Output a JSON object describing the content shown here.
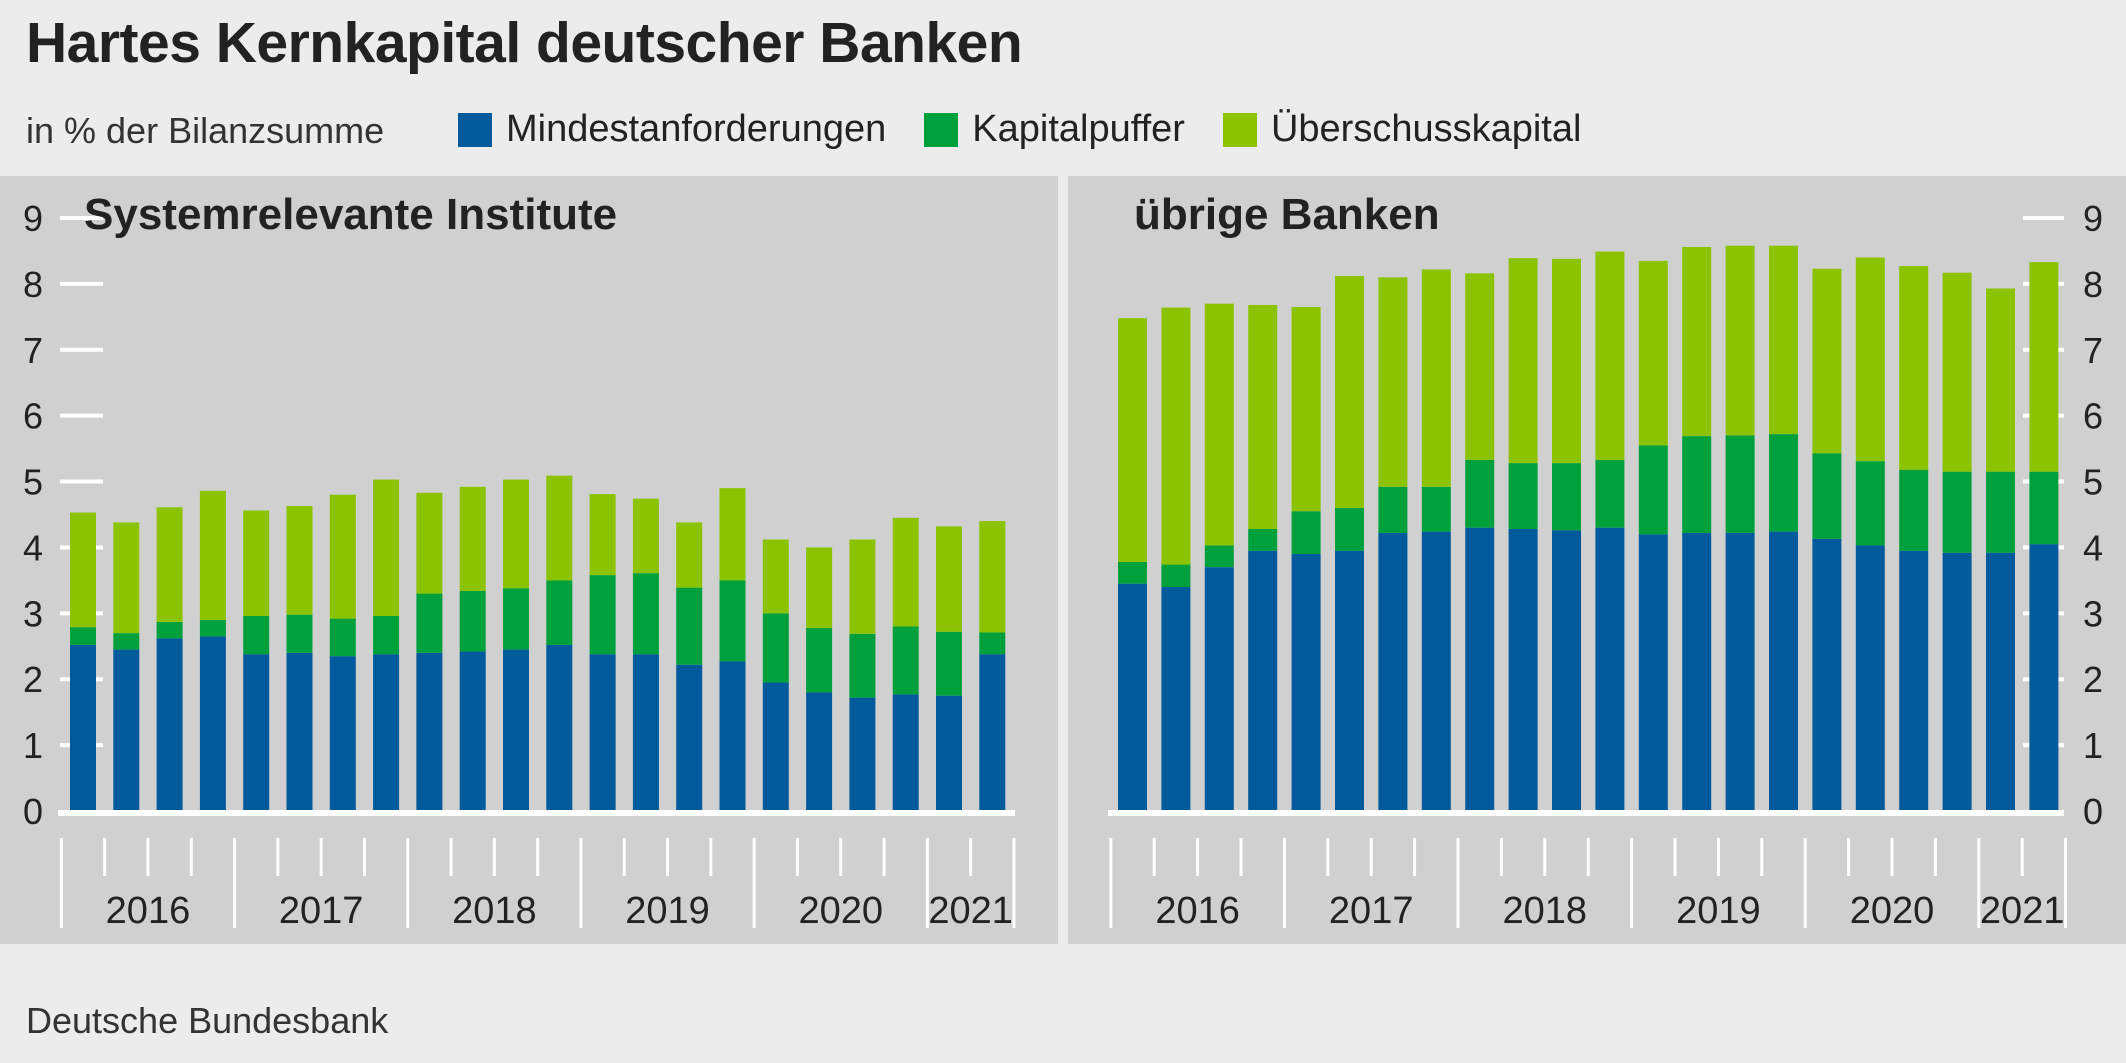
{
  "title": "Hartes Kernkapital deutscher Banken",
  "subtitle": "in % der Bilanzsumme",
  "source": "Deutsche Bundesbank",
  "legend": [
    {
      "label": "Mindestanforderungen",
      "color": "#005a9c"
    },
    {
      "label": "Kapitalpuffer",
      "color": "#00a03c"
    },
    {
      "label": "Überschusskapital",
      "color": "#8cc300"
    }
  ],
  "chart_data": [
    {
      "type": "bar",
      "stacked": true,
      "title": "Systemrelevante Institute",
      "ylim": [
        0,
        9
      ],
      "yticks": [
        0,
        1,
        2,
        3,
        4,
        5,
        6,
        7,
        8,
        9
      ],
      "axis_side": "left",
      "year_labels": [
        "2016",
        "2017",
        "2018",
        "2019",
        "2020",
        "2021"
      ],
      "quarters_per_year": [
        4,
        4,
        4,
        4,
        4,
        2
      ],
      "series": [
        {
          "name": "Mindestanforderungen",
          "values": [
            2.52,
            2.45,
            2.62,
            2.65,
            2.38,
            2.4,
            2.35,
            2.38,
            2.4,
            2.42,
            2.45,
            2.52,
            2.38,
            2.38,
            2.22,
            2.27,
            1.95,
            1.8,
            1.72,
            1.77,
            1.75,
            2.38
          ]
        },
        {
          "name": "Kapitalpuffer",
          "values": [
            0.27,
            0.25,
            0.25,
            0.25,
            0.58,
            0.58,
            0.57,
            0.58,
            0.9,
            0.92,
            0.93,
            0.98,
            1.2,
            1.23,
            1.17,
            1.23,
            1.05,
            0.98,
            0.97,
            1.03,
            0.97,
            0.33
          ]
        },
        {
          "name": "Überschusskapital",
          "values": [
            1.74,
            1.68,
            1.74,
            1.96,
            1.6,
            1.65,
            1.88,
            2.07,
            1.53,
            1.58,
            1.65,
            1.59,
            1.23,
            1.13,
            0.99,
            1.4,
            1.12,
            1.22,
            1.43,
            1.65,
            1.6,
            1.69
          ]
        }
      ]
    },
    {
      "type": "bar",
      "stacked": true,
      "title": "übrige Banken",
      "ylim": [
        0,
        9
      ],
      "yticks": [
        0,
        1,
        2,
        3,
        4,
        5,
        6,
        7,
        8,
        9
      ],
      "axis_side": "right",
      "year_labels": [
        "2016",
        "2017",
        "2018",
        "2019",
        "2020",
        "2021"
      ],
      "quarters_per_year": [
        4,
        4,
        4,
        4,
        4,
        2
      ],
      "series": [
        {
          "name": "Mindestanforderungen",
          "values": [
            3.45,
            3.4,
            3.7,
            3.95,
            3.9,
            3.95,
            4.22,
            4.24,
            4.3,
            4.28,
            4.26,
            4.3,
            4.2,
            4.22,
            4.22,
            4.24,
            4.13,
            4.03,
            3.95,
            3.92,
            3.92,
            4.05
          ]
        },
        {
          "name": "Kapitalpuffer",
          "values": [
            0.33,
            0.34,
            0.33,
            0.33,
            0.65,
            0.65,
            0.7,
            0.68,
            1.03,
            1.0,
            1.02,
            1.03,
            1.35,
            1.47,
            1.48,
            1.48,
            1.3,
            1.28,
            1.23,
            1.23,
            1.23,
            1.1
          ]
        },
        {
          "name": "Überschusskapital",
          "values": [
            3.7,
            3.9,
            3.67,
            3.4,
            3.1,
            3.52,
            3.18,
            3.3,
            2.83,
            3.11,
            3.1,
            3.16,
            2.8,
            2.87,
            2.88,
            2.86,
            2.8,
            3.09,
            3.09,
            3.02,
            2.78,
            3.18
          ]
        }
      ]
    }
  ]
}
